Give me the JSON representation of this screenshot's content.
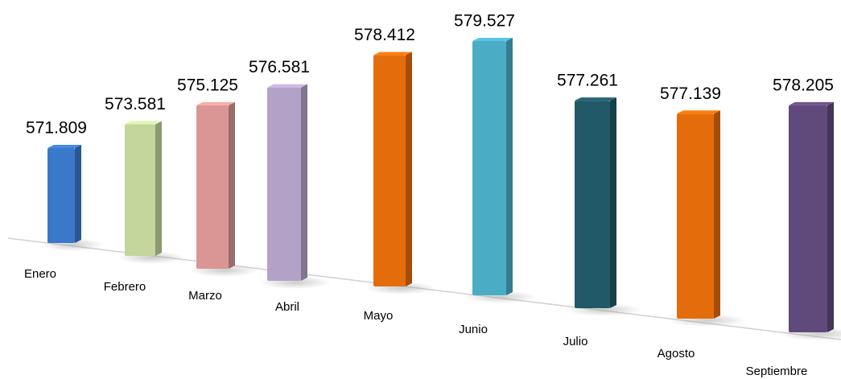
{
  "chart_data": {
    "type": "bar3d",
    "categories": [
      "Enero",
      "Febrero",
      "Marzo",
      "Abril",
      "Mayo",
      "Junio",
      "Julio",
      "Agosto",
      "Septiembre"
    ],
    "values": [
      571809,
      573581,
      575125,
      576581,
      578412,
      579527,
      577261,
      577139,
      578205
    ],
    "value_labels": [
      "571.809",
      "573.581",
      "575.125",
      "576.581",
      "578.412",
      "579.527",
      "577.261",
      "577.139",
      "578.205"
    ],
    "colors": [
      "#3a78c9",
      "#c3d69b",
      "#d99694",
      "#b3a2c7",
      "#e46c0a",
      "#4bacc6",
      "#215968",
      "#e46c0a",
      "#604a7b"
    ]
  }
}
